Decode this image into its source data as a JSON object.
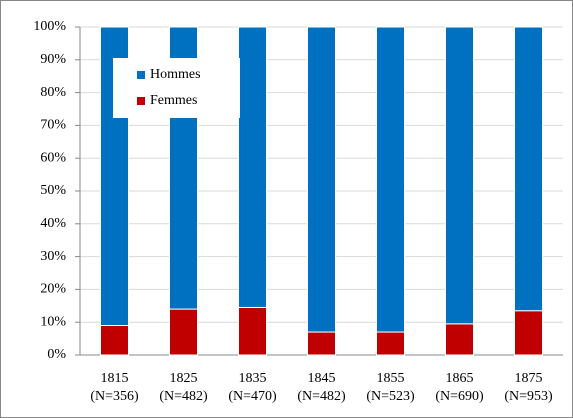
{
  "chart_data": {
    "type": "stacked_bar",
    "categories": [
      [
        "1815",
        "(N=356)"
      ],
      [
        "1825",
        "(N=482)"
      ],
      [
        "1835",
        "(N=470)"
      ],
      [
        "1845",
        "(N=482)"
      ],
      [
        "1855",
        "(N=523)"
      ],
      [
        "1865",
        "(N=690)"
      ],
      [
        "1875",
        "(N=953)"
      ]
    ],
    "series": [
      {
        "name": "Femmes",
        "color": "#c00000",
        "values": [
          9,
          14,
          14.5,
          7,
          7,
          9.5,
          13.5
        ]
      },
      {
        "name": "Hommes",
        "color": "#0070c0",
        "values": [
          91,
          86,
          85.5,
          93,
          93,
          90.5,
          86.5
        ]
      }
    ],
    "ylim": [
      0,
      100
    ],
    "yticks": [
      {
        "value": 0,
        "label": "0%"
      },
      {
        "value": 10,
        "label": "10%"
      },
      {
        "value": 20,
        "label": "20%"
      },
      {
        "value": 30,
        "label": "30%"
      },
      {
        "value": 40,
        "label": "40%"
      },
      {
        "value": 50,
        "label": "50%"
      },
      {
        "value": 60,
        "label": "60%"
      },
      {
        "value": 70,
        "label": "70%"
      },
      {
        "value": 80,
        "label": "80%"
      },
      {
        "value": 90,
        "label": "90%"
      },
      {
        "value": 100,
        "label": "100%"
      }
    ],
    "grid": true
  }
}
